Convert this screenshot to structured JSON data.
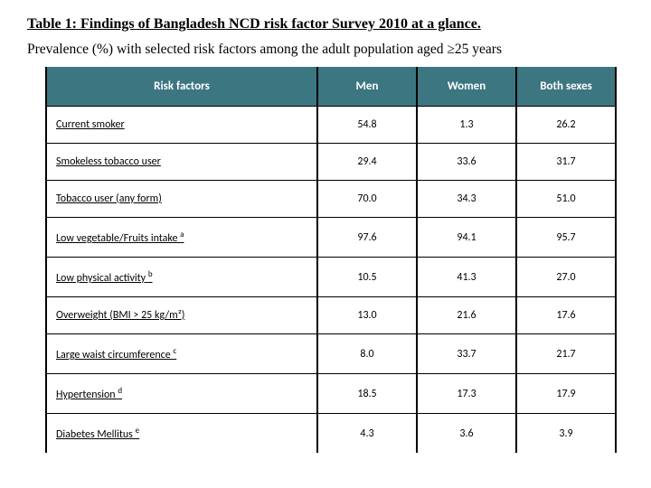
{
  "title": "Table 1: Findings of Bangladesh NCD risk factor Survey 2010 at a glance.",
  "subtitle": "Prevalence (%) with selected risk factors among the adult population aged ≥25 years",
  "table": {
    "header_bg": "#3c7681",
    "header_fg": "#ffffff",
    "columns": [
      "Risk factors",
      "Men",
      "Women",
      "Both sexes"
    ],
    "rows": [
      {
        "label": "Current smoker",
        "sup": "",
        "men": "54.8",
        "women": "1.3",
        "both": "26.2"
      },
      {
        "label": "Smokeless tobacco user",
        "sup": "",
        "men": "29.4",
        "women": "33.6",
        "both": "31.7"
      },
      {
        "label": "Tobacco user (any form)",
        "sup": "",
        "men": "70.0",
        "women": "34.3",
        "both": "51.0"
      },
      {
        "label": "Low vegetable/Fruits intake ",
        "sup": "a",
        "men": "97.6",
        "women": "94.1",
        "both": "95.7"
      },
      {
        "label": "Low physical activity ",
        "sup": "b",
        "men": "10.5",
        "women": "41.3",
        "both": "27.0"
      },
      {
        "label": "Overweight (BMI > 25 kg/m²)",
        "sup": "",
        "men": "13.0",
        "women": "21.6",
        "both": "17.6"
      },
      {
        "label": "Large waist circumference ",
        "sup": "c",
        "men": "8.0",
        "women": "33.7",
        "both": "21.7"
      },
      {
        "label": "Hypertension ",
        "sup": "d",
        "men": "18.5",
        "women": "17.3",
        "both": "17.9"
      },
      {
        "label": "Diabetes Mellitus ",
        "sup": "e",
        "men": "4.3",
        "women": "3.6",
        "both": "3.9"
      }
    ]
  }
}
